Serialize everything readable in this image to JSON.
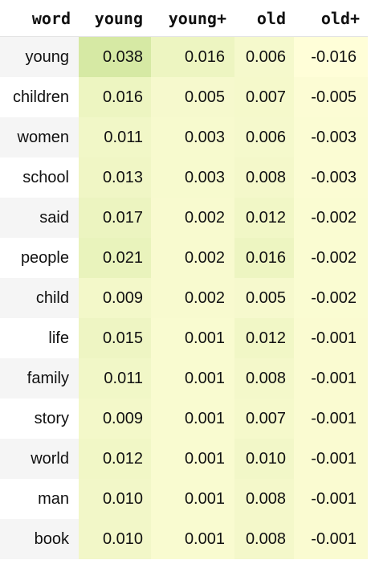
{
  "headers": [
    "word",
    "young",
    "young+",
    "old",
    "old+"
  ],
  "rows": [
    {
      "word": "young",
      "young": "0.038",
      "young_plus": "0.016",
      "old": "0.006",
      "old_plus": "-0.016"
    },
    {
      "word": "children",
      "young": "0.016",
      "young_plus": "0.005",
      "old": "0.007",
      "old_plus": "-0.005"
    },
    {
      "word": "women",
      "young": "0.011",
      "young_plus": "0.003",
      "old": "0.006",
      "old_plus": "-0.003"
    },
    {
      "word": "school",
      "young": "0.013",
      "young_plus": "0.003",
      "old": "0.008",
      "old_plus": "-0.003"
    },
    {
      "word": "said",
      "young": "0.017",
      "young_plus": "0.002",
      "old": "0.012",
      "old_plus": "-0.002"
    },
    {
      "word": "people",
      "young": "0.021",
      "young_plus": "0.002",
      "old": "0.016",
      "old_plus": "-0.002"
    },
    {
      "word": "child",
      "young": "0.009",
      "young_plus": "0.002",
      "old": "0.005",
      "old_plus": "-0.002"
    },
    {
      "word": "life",
      "young": "0.015",
      "young_plus": "0.001",
      "old": "0.012",
      "old_plus": "-0.001"
    },
    {
      "word": "family",
      "young": "0.011",
      "young_plus": "0.001",
      "old": "0.008",
      "old_plus": "-0.001"
    },
    {
      "word": "story",
      "young": "0.009",
      "young_plus": "0.001",
      "old": "0.007",
      "old_plus": "-0.001"
    },
    {
      "word": "world",
      "young": "0.012",
      "young_plus": "0.001",
      "old": "0.010",
      "old_plus": "-0.001"
    },
    {
      "word": "man",
      "young": "0.010",
      "young_plus": "0.001",
      "old": "0.008",
      "old_plus": "-0.001"
    },
    {
      "word": "book",
      "young": "0.010",
      "young_plus": "0.001",
      "old": "0.008",
      "old_plus": "-0.001"
    }
  ],
  "colors": {
    "heat_low": "#fffed8",
    "heat_high": "#d6e9a4",
    "row_stripe": "#f5f5f5"
  }
}
